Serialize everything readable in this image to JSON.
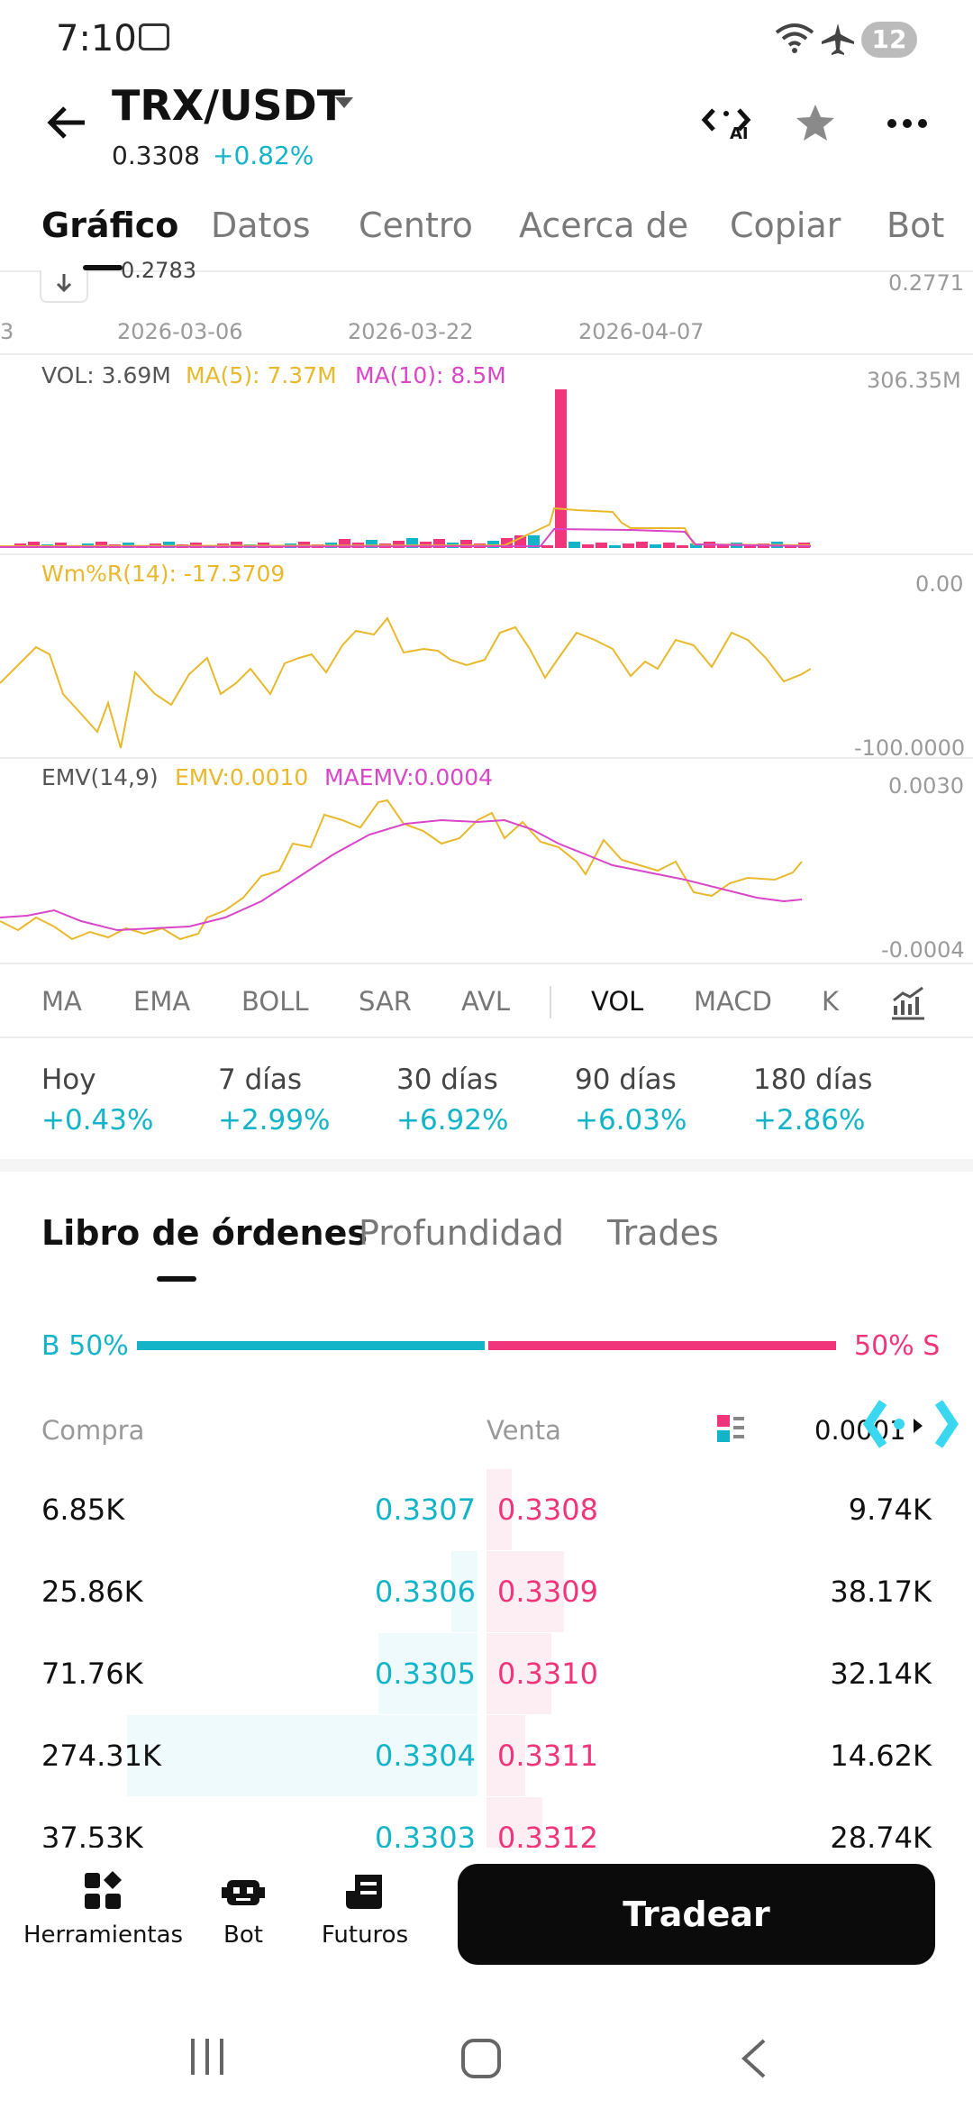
{
  "status": {
    "time": "7:10",
    "battery": "12"
  },
  "header": {
    "pair": "TRX/USDT",
    "price": "0.3308",
    "change": "+0.82%"
  },
  "tabs": [
    "Gráfico",
    "Datos",
    "Centro",
    "Acerca de",
    "Copiar",
    "Bot"
  ],
  "chart": {
    "top_price_label": "0.2771",
    "top_left_label": "0.2783",
    "dates": [
      "2026-03-06",
      "2026-03-22",
      "2026-04-07"
    ],
    "vol": {
      "label": "VOL: 3.69M",
      "ma5": "MA(5): 7.37M",
      "ma10": "MA(10): 8.5M",
      "max": "306.35M"
    },
    "wr": {
      "label": "Wm%R(14): -17.3709",
      "top": "0.00",
      "bottom": "-100.0000"
    },
    "emv": {
      "label": "EMV(14,9)",
      "emv": "EMV:0.0010",
      "maemv": "MAEMV:0.0004",
      "top": "0.0030",
      "bottom": "-0.0004"
    }
  },
  "indicator_tabs": [
    "MA",
    "EMA",
    "BOLL",
    "SAR",
    "AVL",
    "VOL",
    "MACD",
    "K"
  ],
  "performance": [
    {
      "label": "Hoy",
      "value": "+0.43%"
    },
    {
      "label": "7 días",
      "value": "+2.99%"
    },
    {
      "label": "30 días",
      "value": "+6.92%"
    },
    {
      "label": "90 días",
      "value": "+6.03%"
    },
    {
      "label": "180 días",
      "value": "+2.86%"
    }
  ],
  "orderbook": {
    "tabs": [
      "Libro de órdenes",
      "Profundidad",
      "Trades"
    ],
    "buy_ratio": "B 50%",
    "sell_ratio": "50% S",
    "buy_fraction": 0.5,
    "col_buy": "Compra",
    "col_sell": "Venta",
    "precision": "0.0001",
    "rows": [
      {
        "bid_qty": "6.85K",
        "bid": "0.3307",
        "ask": "0.3308",
        "ask_qty": "9.74K"
      },
      {
        "bid_qty": "25.86K",
        "bid": "0.3306",
        "ask": "0.3309",
        "ask_qty": "38.17K"
      },
      {
        "bid_qty": "71.76K",
        "bid": "0.3305",
        "ask": "0.3310",
        "ask_qty": "32.14K"
      },
      {
        "bid_qty": "274.31K",
        "bid": "0.3304",
        "ask": "0.3311",
        "ask_qty": "14.62K"
      },
      {
        "bid_qty": "37.53K",
        "bid": "0.3303",
        "ask": "0.3312",
        "ask_qty": "28.74K"
      }
    ]
  },
  "bottom_nav": {
    "tools": "Herramientas",
    "bot": "Bot",
    "futures": "Futuros",
    "trade": "Tradear"
  },
  "colors": {
    "up": "#14b4c8",
    "down": "#f0357a",
    "ma5": "#e8b92c",
    "ma10": "#d946c8"
  }
}
